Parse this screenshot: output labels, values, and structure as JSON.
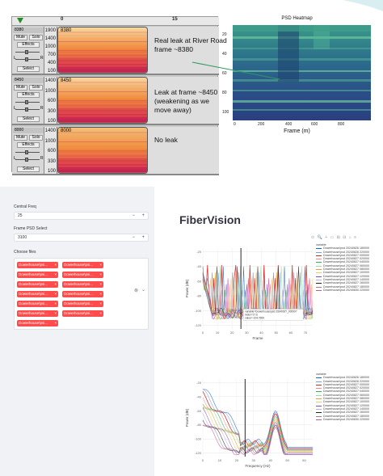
{
  "audacity": {
    "ruler_ticks": [
      "0",
      "15"
    ],
    "tracks": [
      {
        "name": "8380",
        "clip_label": "8380",
        "mute": "Mute",
        "solo": "Solo",
        "effects": "Effects",
        "select": "Select",
        "scale": [
          "1900",
          "1400",
          "1000",
          "700",
          "400",
          "100"
        ],
        "note": "Real leak at River Road\nframe ~8380"
      },
      {
        "name": "8450",
        "clip_label": "8450",
        "mute": "Mute",
        "solo": "Solo",
        "effects": "Effects",
        "select": "Select",
        "scale": [
          "1400",
          "1000",
          "600",
          "300",
          "100"
        ],
        "note": "Leak at frame ~8450\n(weakening as we\nmove away)"
      },
      {
        "name": "8000",
        "clip_label": "8000",
        "mute": "Mute",
        "solo": "Solo",
        "effects": "Effects",
        "select": "Select",
        "scale": [
          "1400",
          "1000",
          "600",
          "330",
          "100"
        ],
        "note": "No leak"
      }
    ],
    "lr": {
      "l": "L",
      "r": "R"
    }
  },
  "heatmap": {
    "title": "PSD Heatmap",
    "xlabel": "Frame (m)",
    "x_ticks": [
      "0",
      "200",
      "400",
      "600",
      "800"
    ],
    "y_ticks": [
      "20",
      "40",
      "60",
      "80",
      "100"
    ]
  },
  "sidebar": {
    "central_freq_label": "Central Freq",
    "central_freq_value": "25",
    "frame_psd_label": "Frame PSD Select",
    "frame_psd_value": "3100",
    "choose_files_label": "Choose files",
    "chip_label": "Dowerhouse\\psi...",
    "chip_count": 13,
    "minus": "−",
    "plus": "+",
    "chip_close": "×",
    "clear_icon": "⊗",
    "chevron": "⌄"
  },
  "main": {
    "title": "FiberVision",
    "toolbar": "⊙ 🔍 + ▭ ⊞ ⊟ ⌂ ≡"
  },
  "chart_data": [
    {
      "type": "line",
      "title": "",
      "xlabel": "Frame",
      "ylabel": "Power (dB)",
      "x_ticks": [
        "0",
        "10",
        "20",
        "30",
        "40",
        "50",
        "60",
        "70"
      ],
      "y_ticks": [
        "-20",
        "-40",
        "-60",
        "-80",
        "-100",
        "-120"
      ],
      "xlim": [
        0,
        75
      ],
      "ylim": [
        -125,
        -15
      ],
      "legend_title": "variable",
      "vline_x": 26,
      "annotation": [
        "variable=Dowerhouse\\psd 2024092?_00000?",
        "index=17.6",
        "value=-104.7659"
      ],
      "series": [
        {
          "name": "Dowerhouse\\psd 20240826 180000",
          "color": "#1f5fbf"
        },
        {
          "name": "Dowerhouse\\psd 20240826 220000",
          "color": "#6aa6e8"
        },
        {
          "name": "Dowerhouse\\psd 20240827 000000",
          "color": "#e02020"
        },
        {
          "name": "Dowerhouse\\psd 20240827 020000",
          "color": "#f08a8a"
        },
        {
          "name": "Dowerhouse\\psd 20240827 040000",
          "color": "#2ab05a"
        },
        {
          "name": "Dowerhouse\\psd 20240827 060000",
          "color": "#9ad99a"
        },
        {
          "name": "Dowerhouse\\psd 20240827 080000",
          "color": "#e8a020"
        },
        {
          "name": "Dowerhouse\\psd 20240827 100000",
          "color": "#f5c870"
        },
        {
          "name": "Dowerhouse\\psd 20240827 120000",
          "color": "#7a4fc0"
        },
        {
          "name": "Dowerhouse\\psd 20240827 140000",
          "color": "#c0a8e8"
        },
        {
          "name": "Dowerhouse\\psd 20240827 160000",
          "color": "#222222"
        },
        {
          "name": "Dowerhouse\\psd 20240827 180000",
          "color": "#888888"
        },
        {
          "name": "Dowerhouse\\psd 20240830 220000",
          "color": "#d050a0"
        }
      ]
    },
    {
      "type": "line",
      "title": "",
      "xlabel": "Frequency (Hz)",
      "ylabel": "Power (dB)",
      "x_ticks": [
        "0",
        "10",
        "20",
        "30",
        "40",
        "50",
        "60"
      ],
      "y_ticks": [
        "-20",
        "-40",
        "-60",
        "-80",
        "-100",
        "-120"
      ],
      "xlim": [
        0,
        65
      ],
      "ylim": [
        -125,
        -15
      ],
      "legend_title": "variable",
      "vline_x": 25,
      "series": [
        {
          "name": "Dowerhouse\\psd 20240826 180000",
          "color": "#1f5fbf"
        },
        {
          "name": "Dowerhouse\\psd 20240826 220000",
          "color": "#6aa6e8"
        },
        {
          "name": "Dowerhouse\\psd 20240827 000000",
          "color": "#e02020"
        },
        {
          "name": "Dowerhouse\\psd 20240827 020000",
          "color": "#f08a8a"
        },
        {
          "name": "Dowerhouse\\psd 20240827 040000",
          "color": "#2ab05a"
        },
        {
          "name": "Dowerhouse\\psd 20240827 060000",
          "color": "#9ad99a"
        },
        {
          "name": "Dowerhouse\\psd 20240827 080000",
          "color": "#e8a020"
        },
        {
          "name": "Dowerhouse\\psd 20240827 100000",
          "color": "#f5c870"
        },
        {
          "name": "Dowerhouse\\psd 20240827 120000",
          "color": "#7a4fc0"
        },
        {
          "name": "Dowerhouse\\psd 20240827 140000",
          "color": "#c0a8e8"
        },
        {
          "name": "Dowerhouse\\psd 20240827 160000",
          "color": "#222222"
        },
        {
          "name": "Dowerhouse\\psd 20240827 180000",
          "color": "#888888"
        },
        {
          "name": "Dowerhouse\\psd 20240830 220000",
          "color": "#d050a0"
        }
      ]
    }
  ]
}
